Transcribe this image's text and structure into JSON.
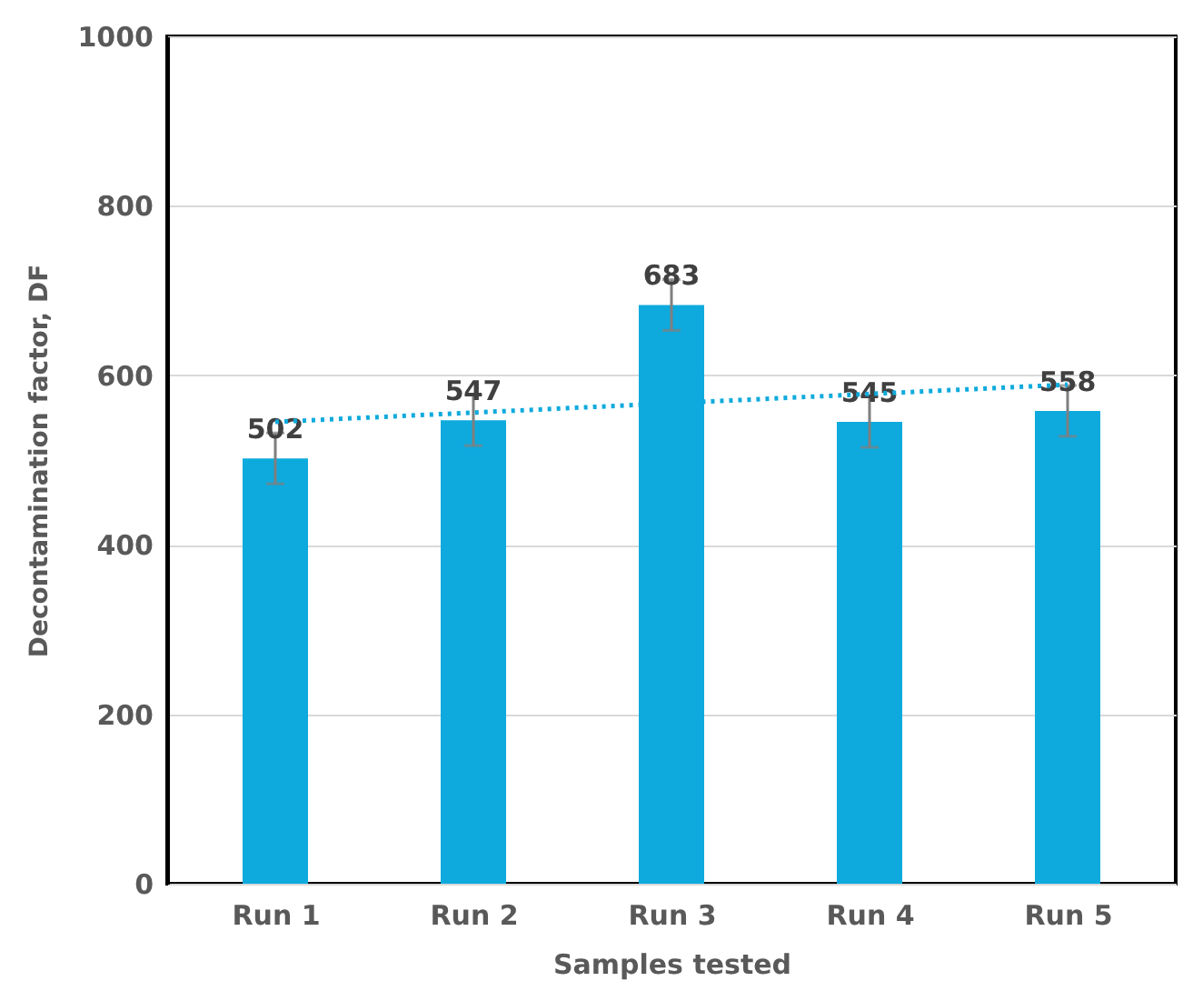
{
  "chart_data": {
    "type": "bar",
    "xlabel": "Samples tested",
    "ylabel": "Decontamination factor, DF",
    "categories": [
      "Run 1",
      "Run 2",
      "Run 3",
      "Run 4",
      "Run 5"
    ],
    "series": [
      {
        "color": "#0eaadd",
        "values": [
          502,
          547,
          683,
          545,
          558
        ],
        "errors": [
          30,
          30,
          30,
          30,
          30
        ],
        "value_labels": [
          "502",
          "547",
          "683",
          "545",
          "558"
        ]
      },
      {
        "type": "line",
        "color": "#0eaadd",
        "x": [
          "Run 1",
          "Run 5"
        ],
        "values": [
          545,
          589
        ],
        "line_style": "dotted"
      }
    ],
    "ylim": [
      0,
      1000
    ],
    "yticks": [
      0,
      200,
      400,
      600,
      800,
      1000
    ],
    "grid": "y"
  }
}
